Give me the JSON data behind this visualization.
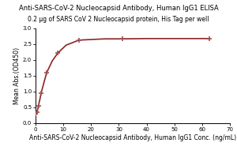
{
  "title": "Anti-SARS-CoV-2 Nucleocapsid Antibody, Human IgG1 ELISA",
  "subtitle": "0.2 μg of SARS CoV 2 Nucleocapsid protein, His Tag per well",
  "xlabel": "Anti-SARS-CoV-2 Nucleocapsid Antibody, Human IgG1 Conc. (ng/mL)",
  "ylabel": "Mean Abs.(OD450)",
  "xlim": [
    0,
    70
  ],
  "ylim": [
    0.0,
    3.0
  ],
  "yticks": [
    0.0,
    0.5,
    1.0,
    1.5,
    2.0,
    2.5,
    3.0
  ],
  "xticks": [
    0,
    10,
    20,
    30,
    40,
    50,
    60,
    70
  ],
  "line_color": "#8B2525",
  "marker_color": "#A05050",
  "marker": "+",
  "marker_size": 5,
  "marker_linewidth": 1.2,
  "line_width": 1.2,
  "title_fontsize": 6.0,
  "subtitle_fontsize": 5.5,
  "xlabel_fontsize": 5.5,
  "ylabel_fontsize": 5.5,
  "tick_fontsize": 5.0,
  "background_color": "#ffffff",
  "plot_bg_color": "#ffffff",
  "x_markers": [
    0.06,
    0.5,
    1.0,
    2.0,
    4.0,
    8.0,
    15.6,
    31.3,
    62.5
  ],
  "y_markers": [
    0.3,
    0.35,
    0.54,
    0.95,
    1.6,
    2.22,
    2.63,
    2.67,
    2.68
  ],
  "curve_x": [
    0.01,
    0.05,
    0.1,
    0.2,
    0.3,
    0.5,
    0.7,
    1.0,
    1.5,
    2.0,
    3.0,
    4.0,
    6.0,
    8.0,
    11.0,
    15.6,
    20.0,
    25.0,
    31.3,
    40.0,
    50.0,
    62.5
  ],
  "curve_y": [
    0.28,
    0.29,
    0.3,
    0.31,
    0.32,
    0.35,
    0.4,
    0.54,
    0.73,
    0.95,
    1.28,
    1.6,
    1.97,
    2.22,
    2.47,
    2.63,
    2.65,
    2.67,
    2.67,
    2.68,
    2.68,
    2.68
  ]
}
